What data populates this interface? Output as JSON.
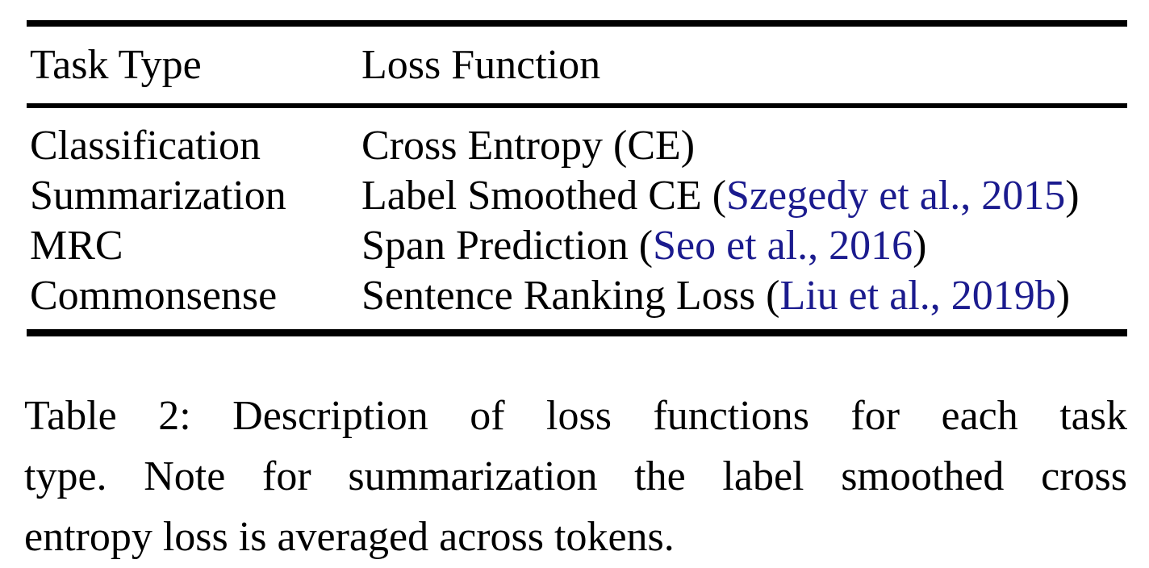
{
  "table": {
    "header": {
      "col1": "Task Type",
      "col2": "Loss Function"
    },
    "rows": [
      {
        "task": "Classification",
        "loss": "Cross Entropy (CE)",
        "cite": "",
        "close": ""
      },
      {
        "task": "Summarization",
        "loss": "Label Smoothed CE (",
        "cite": "Szegedy et al., 2015",
        "close": ")"
      },
      {
        "task": "MRC",
        "loss": "Span Prediction (",
        "cite": "Seo et al., 2016",
        "close": ")"
      },
      {
        "task": "Commonsense",
        "loss": "Sentence Ranking Loss (",
        "cite": "Liu et al., 2019b",
        "close": ")"
      }
    ]
  },
  "caption": {
    "line1": "Table 2: Description of loss functions for each task",
    "line2": "type. Note for summarization the label smoothed cross",
    "line3": "entropy loss is averaged across tokens."
  },
  "colors": {
    "text": "#000000",
    "rule": "#000000",
    "citation_link": "#1b1b8e",
    "background": "#ffffff"
  }
}
